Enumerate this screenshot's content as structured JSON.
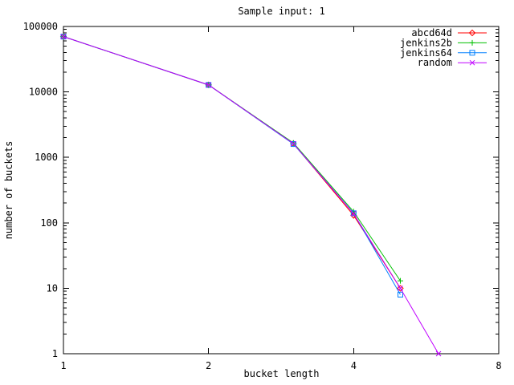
{
  "title": "Sample input: 1",
  "colors": {
    "background": "#ffffff",
    "foreground": "#000000",
    "series_red": "#ff0000",
    "series_green": "#00c000",
    "series_blue": "#0080ff",
    "series_magenta": "#c000ff"
  },
  "chart_data": {
    "type": "line",
    "title": "Sample input: 1",
    "xlabel": "bucket length",
    "ylabel": "number of buckets",
    "x_scale": "log2",
    "y_scale": "log10",
    "xlim": [
      1,
      8
    ],
    "ylim": [
      1,
      100000
    ],
    "x_ticks": [
      1,
      2,
      4,
      8
    ],
    "y_ticks": [
      1,
      10,
      100,
      1000,
      10000,
      100000
    ],
    "grid": false,
    "legend_position": "top-right-inside",
    "series": [
      {
        "name": "abcd64d",
        "color": "#ff0000",
        "marker": "diamond",
        "points": [
          [
            1,
            70000
          ],
          [
            2,
            12800
          ],
          [
            3,
            1620
          ],
          [
            4,
            130
          ],
          [
            5,
            10
          ]
        ]
      },
      {
        "name": "jenkins2b",
        "color": "#00c000",
        "marker": "plus",
        "points": [
          [
            1,
            70000
          ],
          [
            2,
            12800
          ],
          [
            3,
            1660
          ],
          [
            4,
            148
          ],
          [
            5,
            13
          ]
        ]
      },
      {
        "name": "jenkins64",
        "color": "#0080ff",
        "marker": "square",
        "points": [
          [
            1,
            70000
          ],
          [
            2,
            12800
          ],
          [
            3,
            1600
          ],
          [
            4,
            140
          ],
          [
            5,
            8
          ]
        ]
      },
      {
        "name": "random",
        "color": "#c000ff",
        "marker": "x",
        "points": [
          [
            1,
            70000
          ],
          [
            2,
            12800
          ],
          [
            3,
            1620
          ],
          [
            4,
            138
          ],
          [
            5,
            10
          ],
          [
            6,
            1
          ]
        ]
      }
    ]
  }
}
